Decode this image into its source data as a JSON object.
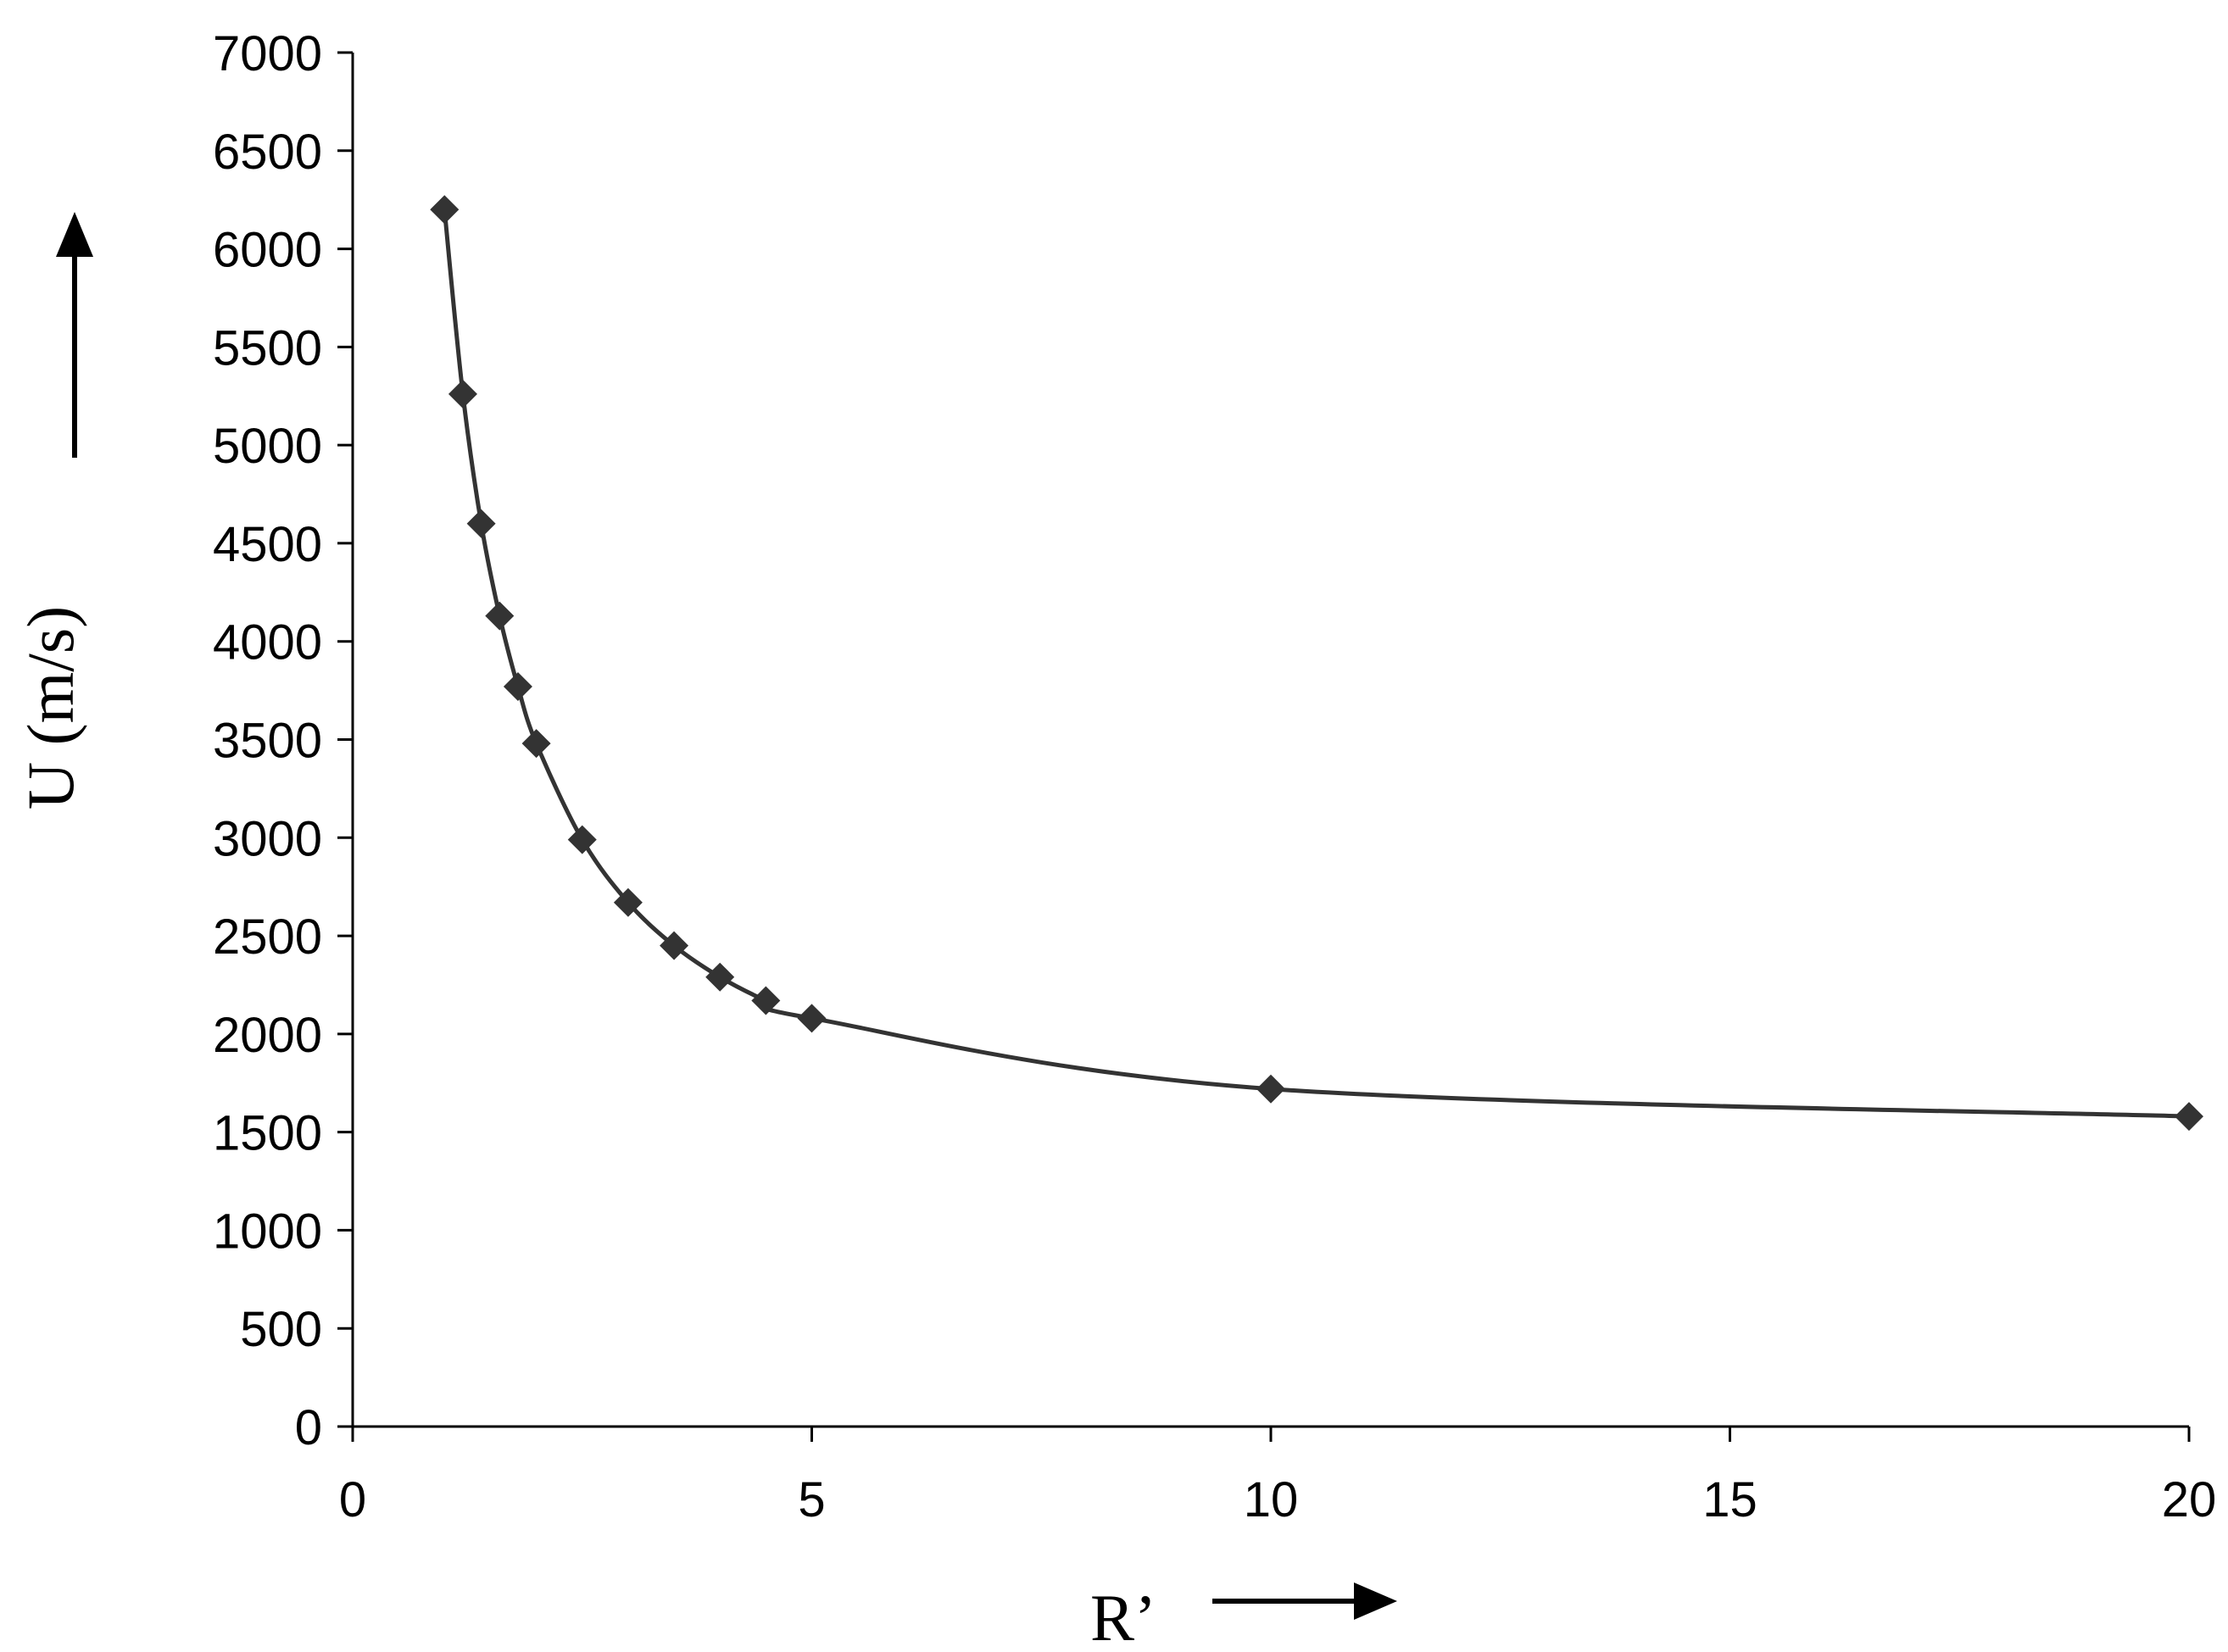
{
  "chart_data": {
    "type": "line",
    "title": "",
    "xlabel": "R’",
    "ylabel": "U (m/s)",
    "xlim": [
      0,
      20
    ],
    "ylim": [
      0,
      7000
    ],
    "xticks": [
      "0",
      "5",
      "10",
      "15",
      "20"
    ],
    "yticks": [
      "0",
      "500",
      "1000",
      "1500",
      "2000",
      "2500",
      "3000",
      "3500",
      "4000",
      "4500",
      "5000",
      "5500",
      "6000",
      "6500",
      "7000"
    ],
    "grid": false,
    "legend": "none",
    "marker": "diamond",
    "color": "#333333",
    "series": [
      {
        "x": [
          1,
          1.2,
          1.4,
          1.6,
          1.8,
          2,
          2.5,
          3,
          3.5,
          4,
          4.5,
          5,
          10,
          20
        ],
        "y": [
          6200,
          5260,
          4600,
          4130,
          3770,
          3480,
          2990,
          2670,
          2450,
          2290,
          2170,
          2080,
          1720,
          1580
        ]
      }
    ]
  }
}
